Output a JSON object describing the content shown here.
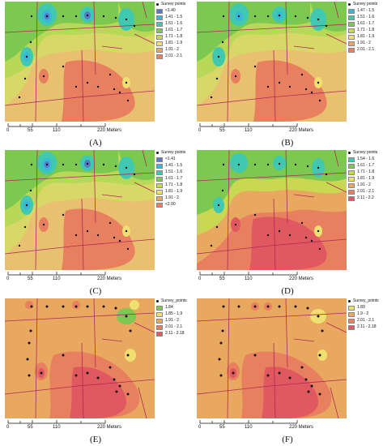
{
  "panels": [
    {
      "caption": "(A)",
      "legend_title": "Survey points",
      "legend": [
        {
          "label": "<1.40",
          "color": "#5878c8"
        },
        {
          "label": "1.41 - 1.5",
          "color": "#38b8d8"
        },
        {
          "label": "1.51 - 1.6",
          "color": "#40c8b0"
        },
        {
          "label": "1.61 - 1.7",
          "color": "#7cc850"
        },
        {
          "label": "1.71 - 1.8",
          "color": "#c8d850"
        },
        {
          "label": "1.81 - 1.9",
          "color": "#f0e070"
        },
        {
          "label": "1.91 - 2",
          "color": "#e8a860"
        },
        {
          "label": "2.01 - 2.1",
          "color": "#e88060"
        }
      ],
      "scale": [
        "0",
        "55",
        "110",
        "220 Meters"
      ]
    },
    {
      "caption": "(B)",
      "legend_title": "Survey points",
      "legend": [
        {
          "label": "1.47 - 1.5",
          "color": "#38b8d8"
        },
        {
          "label": "1.51 - 1.6",
          "color": "#40c8b0"
        },
        {
          "label": "1.61 - 1.7",
          "color": "#7cc850"
        },
        {
          "label": "1.71 - 1.8",
          "color": "#c8d850"
        },
        {
          "label": "1.81 - 1.9",
          "color": "#f0e070"
        },
        {
          "label": "1.91 - 2",
          "color": "#e8a860"
        },
        {
          "label": "2.01 - 2.1",
          "color": "#e88060"
        }
      ],
      "scale": [
        "0",
        "55",
        "110",
        "220 Meters"
      ]
    },
    {
      "caption": "(C)",
      "legend_title": "Survey points",
      "legend": [
        {
          "label": "<1.41",
          "color": "#5878c8"
        },
        {
          "label": "1.41 - 1.5",
          "color": "#38b8d8"
        },
        {
          "label": "1.51 - 1.6",
          "color": "#40c8b0"
        },
        {
          "label": "1.61 - 1.7",
          "color": "#7cc850"
        },
        {
          "label": "1.71 - 1.8",
          "color": "#c8d850"
        },
        {
          "label": "1.81 - 1.9",
          "color": "#f0e070"
        },
        {
          "label": "1.91 - 2",
          "color": "#e8a860"
        },
        {
          "label": "<2.00",
          "color": "#e88060"
        }
      ],
      "scale": [
        "0",
        "55",
        "110",
        "220 Meters"
      ]
    },
    {
      "caption": "(D)",
      "legend_title": "Survey points",
      "legend": [
        {
          "label": "1.54 - 1.6",
          "color": "#40c8b0"
        },
        {
          "label": "1.61 - 1.7",
          "color": "#7cc850"
        },
        {
          "label": "1.71 - 1.8",
          "color": "#c8d850"
        },
        {
          "label": "1.81 - 1.9",
          "color": "#f0e070"
        },
        {
          "label": "1.91 - 2",
          "color": "#e8a860"
        },
        {
          "label": "2.01 - 2.1",
          "color": "#e88060"
        },
        {
          "label": "2.11 - 2.2",
          "color": "#e05860"
        }
      ],
      "scale": [
        "0",
        "55",
        "110",
        "220 Meters"
      ]
    },
    {
      "caption": "(E)",
      "legend_title": "Survey_points",
      "legend": [
        {
          "label": "1.84",
          "color": "#7cc850"
        },
        {
          "label": "1.85 - 1.9",
          "color": "#f0e070"
        },
        {
          "label": "1.91 - 2",
          "color": "#e8a860"
        },
        {
          "label": "2.01 - 2.1",
          "color": "#e88060"
        },
        {
          "label": "2.11 - 2.18",
          "color": "#e05860"
        }
      ],
      "scale": [
        "0",
        "55",
        "110",
        "220 Meters"
      ]
    },
    {
      "caption": "(F)",
      "legend_title": "Survey_points",
      "legend": [
        {
          "label": "1.89",
          "color": "#f0e070"
        },
        {
          "label": "1.9 - 2",
          "color": "#e8a860"
        },
        {
          "label": "2.01 - 2.1",
          "color": "#e88060"
        },
        {
          "label": "2.11 - 2.18",
          "color": "#e05860"
        }
      ],
      "scale": [
        "0",
        "55",
        "110",
        "220 Meters"
      ]
    }
  ],
  "colors": {
    "background": "#ffffff",
    "road": "#b02858",
    "point": "#111111"
  }
}
